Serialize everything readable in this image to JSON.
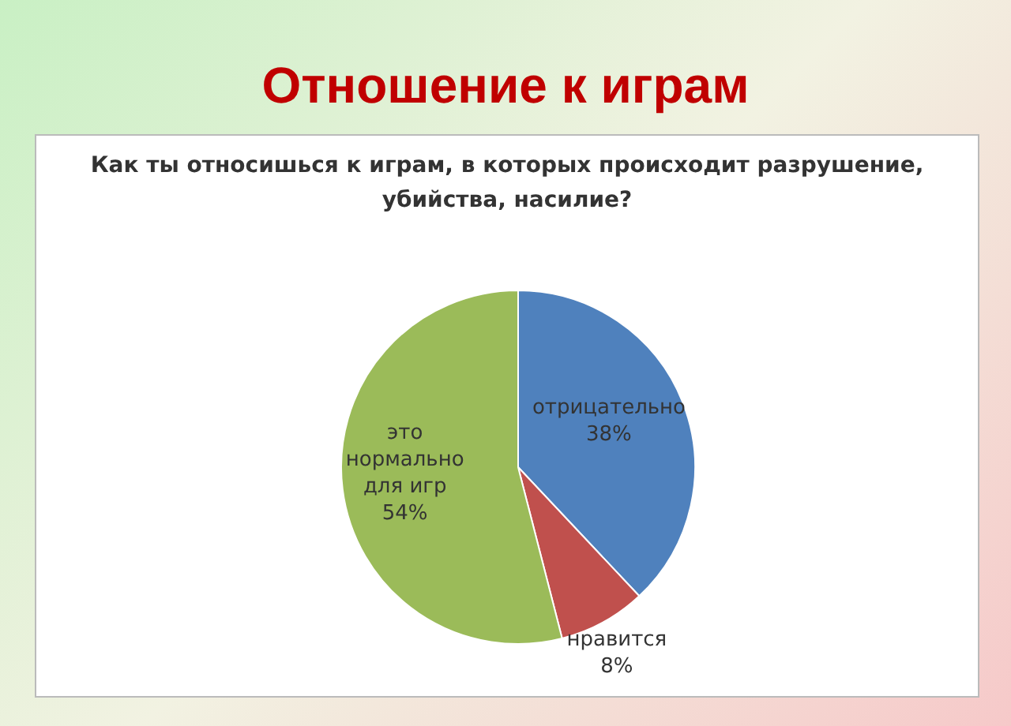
{
  "chart_data": {
    "type": "pie",
    "title": "Отношение к играм",
    "subtitle": "Как ты относишься к играм, в которых происходит разрушение, убийства, насилие?",
    "categories": [
      "отрицательно",
      "нравится",
      "это нормально для игр"
    ],
    "values": [
      38,
      8,
      54
    ],
    "colors": [
      "#4f81bd",
      "#c0504d",
      "#9bbb59"
    ],
    "value_labels": [
      "38%",
      "8%",
      "54%"
    ]
  }
}
